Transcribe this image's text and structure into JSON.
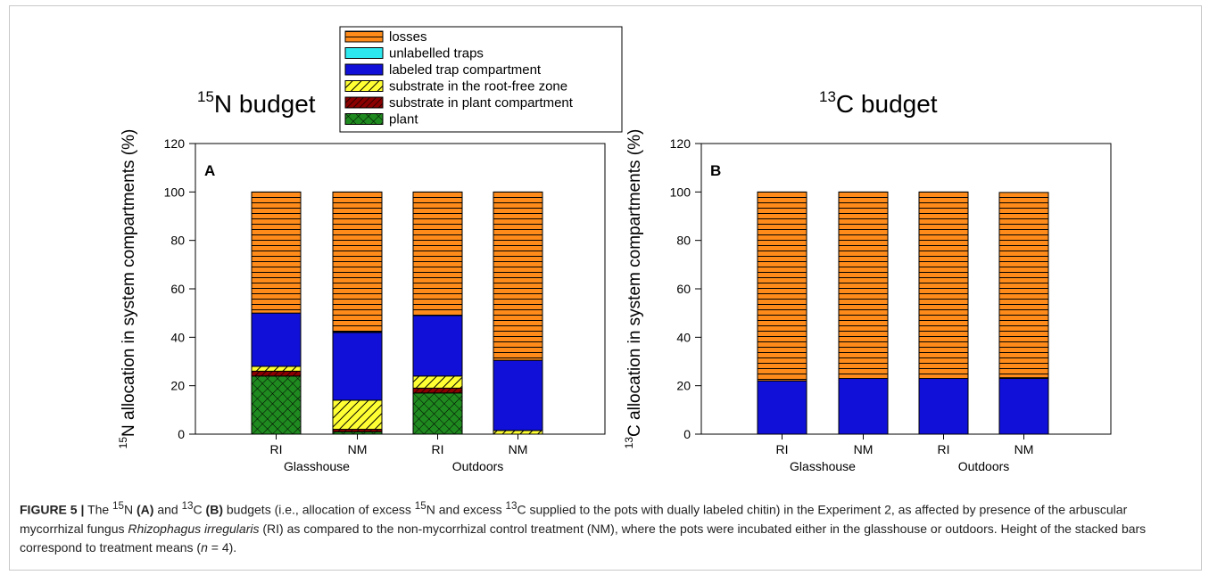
{
  "legend": {
    "items": [
      {
        "label": "losses",
        "color": "#ff8c1a",
        "pattern": "hlines"
      },
      {
        "label": "unlabelled traps",
        "color": "#2ee8f0",
        "pattern": "solid"
      },
      {
        "label": "labeled trap compartment",
        "color": "#1010d8",
        "pattern": "solid"
      },
      {
        "label": "substrate in the root-free zone",
        "color": "#ffff33",
        "pattern": "diag"
      },
      {
        "label": "substrate in plant compartment",
        "color": "#8b0000",
        "pattern": "diag"
      },
      {
        "label": "plant",
        "color": "#1f8a1f",
        "pattern": "crosshatch"
      }
    ]
  },
  "chart_data": [
    {
      "type": "bar",
      "stacked": true,
      "panel_label": "A",
      "title_sup": "15",
      "title_main": "N budget",
      "ylabel_sup": "15",
      "ylabel_main": "N allocation in system compartments (%)",
      "ylim": [
        0,
        120
      ],
      "yticks": [
        0,
        20,
        40,
        60,
        80,
        100,
        120
      ],
      "categories": [
        "RI",
        "NM",
        "RI",
        "NM"
      ],
      "groups": [
        "Glasshouse",
        "Outdoors"
      ],
      "series": [
        {
          "name": "plant",
          "values": [
            24,
            1,
            17,
            0
          ]
        },
        {
          "name": "substrate in plant compartment",
          "values": [
            2,
            1,
            2,
            0
          ]
        },
        {
          "name": "substrate in the root-free zone",
          "values": [
            2,
            12,
            5,
            1.5
          ]
        },
        {
          "name": "labeled trap compartment",
          "values": [
            22,
            28,
            25,
            29
          ]
        },
        {
          "name": "unlabelled traps",
          "values": [
            0,
            0.3,
            0,
            0
          ]
        },
        {
          "name": "losses",
          "values": [
            50,
            57.7,
            51,
            69.5
          ]
        }
      ]
    },
    {
      "type": "bar",
      "stacked": true,
      "panel_label": "B",
      "title_sup": "13",
      "title_main": "C budget",
      "ylabel_sup": "13",
      "ylabel_main": "C allocation in system compartments (%)",
      "ylim": [
        0,
        120
      ],
      "yticks": [
        0,
        20,
        40,
        60,
        80,
        100,
        120
      ],
      "categories": [
        "RI",
        "NM",
        "RI",
        "NM"
      ],
      "groups": [
        "Glasshouse",
        "Outdoors"
      ],
      "series": [
        {
          "name": "plant",
          "values": [
            0,
            0,
            0,
            0
          ]
        },
        {
          "name": "substrate in plant compartment",
          "values": [
            0,
            0,
            0,
            0
          ]
        },
        {
          "name": "substrate in the root-free zone",
          "values": [
            0,
            0,
            0,
            0
          ]
        },
        {
          "name": "labeled trap compartment",
          "values": [
            22,
            23,
            23,
            23
          ]
        },
        {
          "name": "unlabelled traps",
          "values": [
            0,
            0,
            0,
            0.3
          ]
        },
        {
          "name": "losses",
          "values": [
            78,
            77,
            77,
            76.5
          ]
        }
      ]
    }
  ],
  "caption": {
    "fig_label": "FIGURE 5 |",
    "t1": " The ",
    "sup_n": "15",
    "t2": "N ",
    "label_a": "(A)",
    "t3": " and ",
    "sup_c": "13",
    "t4": "C ",
    "label_b": "(B)",
    "t5": " budgets (i.e., allocation of excess ",
    "sup_n2": "15",
    "t6": "N and excess ",
    "sup_c2": "13",
    "t7": "C supplied to the pots with dually labeled chitin) in the Experiment 2, as affected by presence of the arbuscular mycorrhizal fungus ",
    "species": "Rhizophagus irregularis",
    "t8": " (RI) as compared to the non-mycorrhizal control treatment (NM), where the pots were incubated either in the glasshouse or outdoors. Height of the stacked bars correspond to treatment means (",
    "n_italic": "n",
    "t9": " = 4)."
  }
}
